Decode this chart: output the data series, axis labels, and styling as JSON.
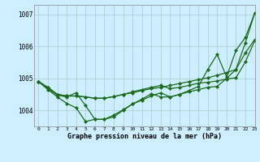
{
  "title": "Graphe pression niveau de la mer (hPa)",
  "bg_color": "#cceeff",
  "grid_color": "#aacccc",
  "line_color": "#1a6b1a",
  "xlim": [
    -0.5,
    23
  ],
  "ylim": [
    1003.5,
    1007.3
  ],
  "yticks": [
    1004,
    1005,
    1006,
    1007
  ],
  "xticks": [
    0,
    1,
    2,
    3,
    4,
    5,
    6,
    7,
    8,
    9,
    10,
    11,
    12,
    13,
    14,
    15,
    16,
    17,
    18,
    19,
    20,
    21,
    22,
    23
  ],
  "line1": [
    1004.9,
    1004.72,
    1004.5,
    1004.45,
    1004.45,
    1004.42,
    1004.38,
    1004.38,
    1004.43,
    1004.5,
    1004.58,
    1004.65,
    1004.72,
    1004.78,
    1004.68,
    1004.72,
    1004.78,
    1004.85,
    1004.88,
    1004.92,
    1004.98,
    1005.02,
    1005.52,
    1006.18
  ],
  "line2": [
    1004.9,
    1004.72,
    1004.5,
    1004.45,
    1004.45,
    1004.42,
    1004.38,
    1004.38,
    1004.43,
    1004.5,
    1004.55,
    1004.62,
    1004.68,
    1004.72,
    1004.78,
    1004.84,
    1004.9,
    1004.96,
    1005.02,
    1005.1,
    1005.18,
    1005.28,
    1005.8,
    1006.22
  ],
  "line3": [
    1004.9,
    1004.68,
    1004.48,
    1004.42,
    1004.55,
    1004.15,
    1003.72,
    1003.72,
    1003.85,
    1004.02,
    1004.2,
    1004.32,
    1004.45,
    1004.55,
    1004.42,
    1004.5,
    1004.58,
    1004.65,
    1004.72,
    1004.75,
    1005.0,
    1005.28,
    1006.12,
    1007.05
  ],
  "line4": [
    1004.9,
    1004.65,
    1004.42,
    1004.22,
    1004.08,
    1003.65,
    1003.72,
    1003.72,
    1003.8,
    1004.0,
    1004.2,
    1004.35,
    1004.52,
    1004.42,
    1004.42,
    1004.5,
    1004.62,
    1004.75,
    1005.28,
    1005.75,
    1005.05,
    1005.88,
    1006.28,
    1007.05
  ]
}
